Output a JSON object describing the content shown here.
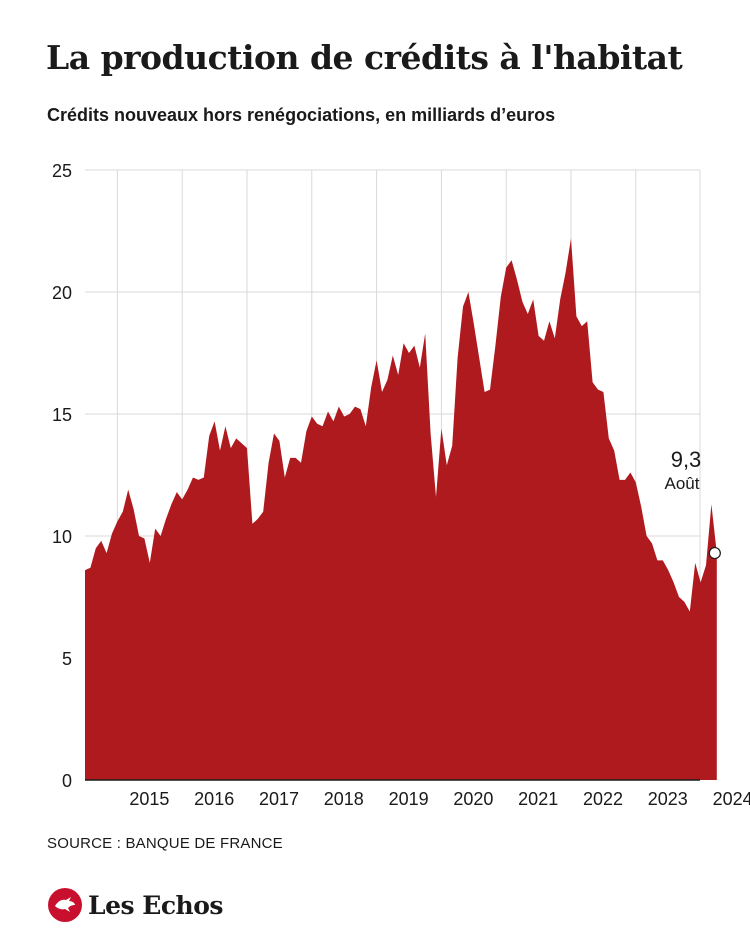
{
  "title": "La production de crédits à l'habitat",
  "subtitle": "Crédits nouveaux hors renégociations, en milliards d’euros",
  "source": "SOURCE : BANQUE DE FRANCE",
  "logo": {
    "text": "Les Echos",
    "icon": "les-echos-logo-icon"
  },
  "colors": {
    "area": "#ae1a1e",
    "grid": "#d9d9d9",
    "text": "#1a1a1a",
    "brand": "#c8102e"
  },
  "chart_data": {
    "type": "area",
    "title": "La production de crédits à l'habitat",
    "ylabel": "",
    "xlabel": "",
    "ylim": [
      0,
      25
    ],
    "y_ticks": [
      "0",
      "5",
      "10",
      "15",
      "20",
      "25"
    ],
    "x_ticks": [
      "2015",
      "2016",
      "2017",
      "2018",
      "2019",
      "2020",
      "2021",
      "2022",
      "2023",
      "2024"
    ],
    "grid": true,
    "series": [
      {
        "start": "2014-07",
        "frequency": "monthly",
        "values": [
          8.6,
          8.7,
          9.5,
          9.8,
          9.3,
          10.1,
          10.6,
          11.0,
          11.9,
          11.1,
          10.0,
          9.9,
          8.9,
          10.3,
          10.0,
          10.7,
          11.3,
          11.8,
          11.5,
          11.9,
          12.4,
          12.3,
          12.4,
          14.1,
          14.7,
          13.5,
          14.5,
          13.6,
          14.0,
          13.8,
          13.6,
          10.5,
          10.7,
          11.0,
          13.0,
          14.2,
          13.9,
          12.4,
          13.2,
          13.2,
          13.0,
          14.3,
          14.9,
          14.6,
          14.5,
          15.1,
          14.7,
          15.3,
          14.9,
          15.0,
          15.3,
          15.2,
          14.5,
          16.1,
          17.2,
          15.9,
          16.4,
          17.4,
          16.6,
          17.9,
          17.5,
          17.8,
          16.9,
          18.3,
          14.2,
          11.6,
          14.4,
          12.9,
          13.7,
          17.3,
          19.4,
          20.0,
          18.7,
          17.3,
          15.9,
          16.0,
          17.8,
          19.8,
          21.0,
          21.3,
          20.5,
          19.6,
          19.1,
          19.7,
          18.2,
          18.0,
          18.8,
          18.1,
          19.7,
          20.8,
          22.2,
          19.0,
          18.6,
          18.8,
          16.3,
          16.0,
          15.9,
          14.0,
          13.5,
          12.3,
          12.3,
          12.6,
          12.2,
          11.2,
          10.0,
          9.7,
          9.0,
          9.0,
          8.6,
          8.1,
          7.5,
          7.3,
          6.9,
          8.9,
          8.1,
          8.8,
          11.3,
          9.3
        ]
      }
    ],
    "annotation": {
      "value": "9,3",
      "label": "Août"
    }
  }
}
